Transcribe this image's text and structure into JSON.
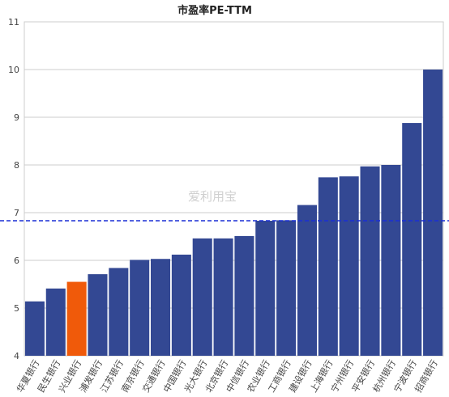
{
  "chart_data": {
    "type": "bar",
    "title": "市盈率PE-TTM",
    "categories": [
      "华夏银行",
      "民生银行",
      "兴业银行",
      "浦发银行",
      "江苏银行",
      "南京银行",
      "交通银行",
      "中国银行",
      "光大银行",
      "北京银行",
      "中信银行",
      "农业银行",
      "工商银行",
      "建设银行",
      "上海银行",
      "宁州银行",
      "平安银行",
      "杭州银行",
      "宁波银行",
      "招商银行"
    ],
    "values": [
      5.14,
      5.41,
      5.55,
      5.71,
      5.84,
      6.01,
      6.03,
      6.12,
      6.46,
      6.46,
      6.51,
      6.83,
      6.84,
      7.16,
      7.74,
      7.76,
      7.97,
      8.0,
      8.88,
      10.0
    ],
    "highlight_index": 2,
    "reference_line": 6.83,
    "ylim": [
      4,
      11
    ],
    "yticks": [
      4,
      5,
      6,
      7,
      8,
      9,
      10,
      11
    ],
    "xlabel": "",
    "ylabel": "",
    "grid": true,
    "colors": {
      "bar": "#334893",
      "highlight": "#f05a0a",
      "reference_line": "#1a2fd6",
      "grid": "#cccccc"
    }
  },
  "watermark": "爱利用宝"
}
